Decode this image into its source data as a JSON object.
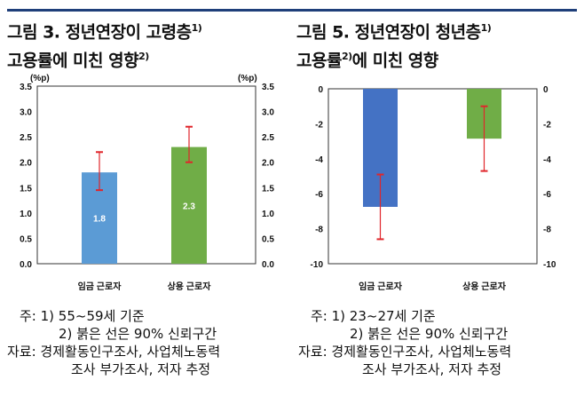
{
  "left_title": {
    "line1": "그림 3. 정년연장이 고령층",
    "sup1": "1)",
    "line2": "고용률에 미친 영향",
    "sup2": "2)"
  },
  "right_title": {
    "line1": "그림 5. 정년연장이 청년층",
    "sup1": "1)",
    "line2a": "고용률",
    "sup2": "2)",
    "line2b": "에 미친 영향"
  },
  "left_notes": [
    "주:  1)  55~59세  기준",
    "       2)  붉은  선은  90%  신뢰구간",
    "자료:    경제활동인구조사,    사업체노동력",
    "          조사  부가조사,  저자  추정"
  ],
  "right_notes": [
    "주:  1)  23~27세  기준",
    "       2)  붉은  선은  90%  신뢰구간",
    "자료:   경제활동인구조사,    사업체노동력",
    "          조사  부가조사,  저자  추정"
  ],
  "chart_data": [
    {
      "type": "bar",
      "unit_label_left": "(%p)",
      "unit_label_right": "(%p)",
      "categories": [
        "임금 근로자",
        "상용 근로자"
      ],
      "values": [
        1.8,
        2.3
      ],
      "data_labels": [
        "1.8",
        "2.3"
      ],
      "ci_low": [
        1.45,
        2.0
      ],
      "ci_high": [
        2.2,
        2.7
      ],
      "colors": [
        "#5b9bd5",
        "#70ad47"
      ],
      "ylim": [
        0,
        3.5
      ],
      "yticks": [
        "0.0",
        "0.5",
        "1.0",
        "1.5",
        "2.0",
        "2.5",
        "3.0",
        "3.5"
      ],
      "error_color": "#e0262b"
    },
    {
      "type": "bar",
      "categories": [
        "임금 근로자",
        "상용 근로자"
      ],
      "values": [
        -6.75,
        -2.85
      ],
      "ci_low": [
        -8.6,
        -4.7
      ],
      "ci_high": [
        -4.9,
        -1.0
      ],
      "colors": [
        "#4472c4",
        "#70ad47"
      ],
      "ylim": [
        -10,
        0
      ],
      "yticks": [
        "0",
        "-2",
        "-4",
        "-6",
        "-8",
        "-10"
      ],
      "error_color": "#e0262b"
    }
  ]
}
